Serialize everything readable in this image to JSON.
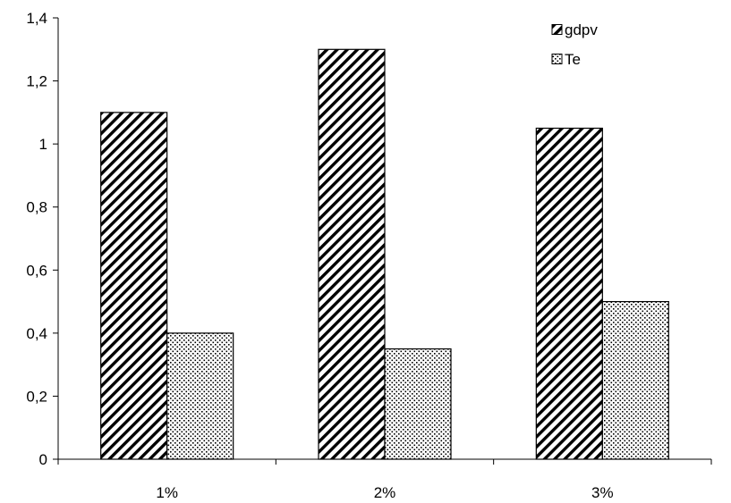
{
  "chart_data": {
    "type": "bar",
    "categories": [
      "1%",
      "2%",
      "3%"
    ],
    "series": [
      {
        "name": "gdpv",
        "values": [
          1.1,
          1.3,
          1.05
        ],
        "pattern": "diagonal-hatch"
      },
      {
        "name": "Te",
        "values": [
          0.4,
          0.35,
          0.5
        ],
        "pattern": "dotted"
      }
    ],
    "ylim": [
      0,
      1.4
    ],
    "yticks": [
      0,
      0.2,
      0.4,
      0.6,
      0.8,
      1,
      1.2,
      1.4
    ],
    "ytick_labels": [
      "0",
      "0,2",
      "0,4",
      "0,6",
      "0,8",
      "1",
      "1,2",
      "1,4"
    ],
    "title": "",
    "xlabel": "",
    "ylabel": "",
    "grid": false,
    "legend_position": "top-right",
    "colors": {
      "bar_stroke": "#000000",
      "pattern_fg": "#000000",
      "background": "#ffffff"
    }
  }
}
